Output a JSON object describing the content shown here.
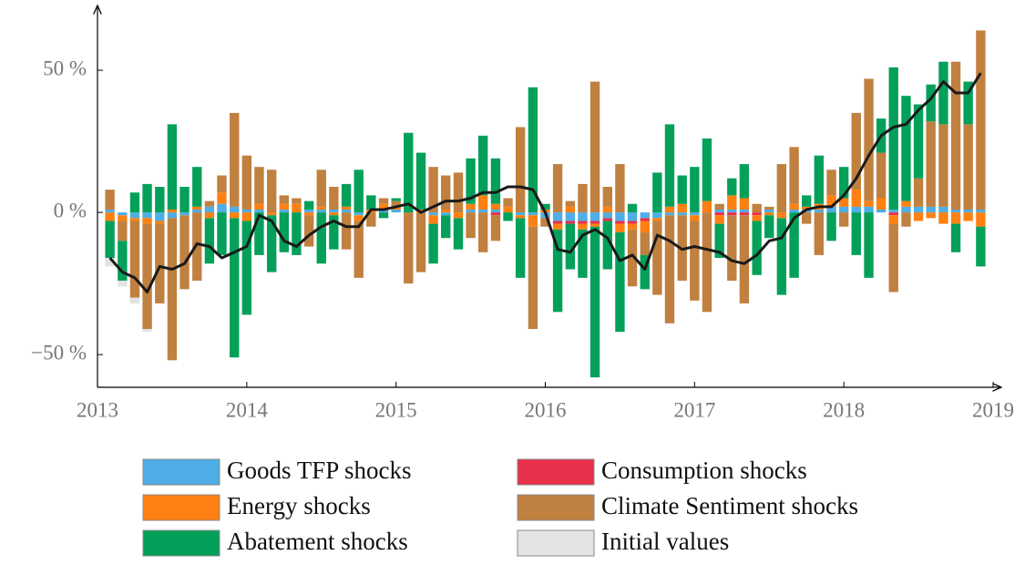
{
  "chart_data": {
    "type": "stacked-bar-line",
    "x": [
      2013.083,
      2013.167,
      2013.25,
      2013.333,
      2013.417,
      2013.5,
      2013.583,
      2013.667,
      2013.75,
      2013.833,
      2013.917,
      2014.0,
      2014.083,
      2014.167,
      2014.25,
      2014.333,
      2014.417,
      2014.5,
      2014.583,
      2014.667,
      2014.75,
      2014.833,
      2014.917,
      2015.0,
      2015.083,
      2015.167,
      2015.25,
      2015.333,
      2015.417,
      2015.5,
      2015.583,
      2015.667,
      2015.75,
      2015.833,
      2015.917,
      2016.0,
      2016.083,
      2016.167,
      2016.25,
      2016.333,
      2016.417,
      2016.5,
      2016.583,
      2016.667,
      2016.75,
      2016.833,
      2016.917,
      2017.0,
      2017.083,
      2017.167,
      2017.25,
      2017.333,
      2017.417,
      2017.5,
      2017.583,
      2017.667,
      2017.75,
      2017.833,
      2017.917,
      2018.0,
      2018.083,
      2018.167,
      2018.25,
      2018.333,
      2018.417,
      2018.5,
      2018.583,
      2018.667,
      2018.75,
      2018.833,
      2018.917
    ],
    "series": [
      {
        "name": "Goods TFP shocks",
        "color": "#4eaee5",
        "values": [
          1,
          -1,
          -2,
          -2,
          -3,
          -2,
          -1,
          1,
          2,
          3,
          2,
          1,
          1,
          0,
          1,
          0,
          1,
          1,
          1,
          1,
          -1,
          0,
          1,
          1,
          0,
          0,
          -1,
          -1,
          0,
          1,
          1,
          1,
          0,
          -1,
          -1,
          -2,
          -3,
          -3,
          -3,
          -3,
          -2,
          -3,
          -3,
          -2,
          -2,
          -1,
          -1,
          -1,
          0,
          1,
          1,
          1,
          0,
          1,
          0,
          1,
          1,
          1,
          2,
          2,
          2,
          2,
          1,
          1,
          2,
          2,
          2,
          2,
          1,
          1,
          1
        ]
      },
      {
        "name": "Consumption shocks",
        "color": "#e8304a",
        "values": [
          0,
          0,
          0,
          0,
          0,
          0,
          0,
          0,
          0,
          0,
          0,
          0,
          0,
          0,
          0,
          0,
          0,
          0,
          0,
          0,
          0,
          0,
          0,
          0,
          0,
          0,
          0,
          0,
          0,
          0,
          0,
          -1,
          0,
          0,
          0,
          0,
          -1,
          -1,
          -1,
          -1,
          -1,
          -1,
          -1,
          -1,
          0,
          0,
          0,
          0,
          0,
          -1,
          -1,
          -1,
          -1,
          0,
          0,
          0,
          0,
          0,
          0,
          0,
          0,
          0,
          0,
          -1,
          0,
          0,
          0,
          0,
          0,
          0,
          0
        ]
      },
      {
        "name": "Energy shocks",
        "color": "#fe8012",
        "values": [
          -3,
          -2,
          -1,
          -2,
          -1,
          1,
          0,
          1,
          -2,
          4,
          -2,
          -3,
          2,
          -1,
          2,
          3,
          -1,
          1,
          -1,
          1,
          -2,
          1,
          2,
          1,
          0,
          1,
          -3,
          1,
          -2,
          2,
          5,
          2,
          2,
          -1,
          -4,
          1,
          -2,
          2,
          -2,
          -1,
          2,
          -3,
          -2,
          -4,
          -1,
          2,
          3,
          -2,
          4,
          -3,
          5,
          4,
          -2,
          -1,
          -2,
          2,
          1,
          2,
          4,
          3,
          6,
          2,
          4,
          -3,
          2,
          -3,
          -2,
          -4,
          -4,
          -3,
          -5
        ]
      },
      {
        "name": "Climate Sentiment shocks",
        "color": "#c0803f",
        "values": [
          7,
          -7,
          -27,
          -37,
          -28,
          -50,
          -26,
          -24,
          2,
          6,
          33,
          19,
          13,
          15,
          3,
          2,
          -11,
          13,
          8,
          -13,
          -20,
          -5,
          2,
          2,
          -25,
          -21,
          16,
          12,
          14,
          -9,
          -14,
          -9,
          3,
          30,
          -36,
          -3,
          17,
          2,
          10,
          46,
          7,
          17,
          -20,
          -8,
          -26,
          -38,
          -23,
          -28,
          -35,
          2,
          -23,
          -31,
          3,
          1,
          17,
          20,
          -4,
          -15,
          9,
          -5,
          27,
          43,
          16,
          -24,
          -5,
          10,
          30,
          29,
          52,
          30,
          63
        ]
      },
      {
        "name": "Abatement shocks",
        "color": "#04a05a",
        "values": [
          -13,
          -14,
          7,
          10,
          9,
          30,
          9,
          14,
          -16,
          -15,
          -49,
          -33,
          -15,
          -20,
          -14,
          -15,
          3,
          -18,
          -12,
          8,
          15,
          5,
          -2,
          1,
          28,
          20,
          -14,
          -8,
          -11,
          16,
          21,
          16,
          -3,
          -21,
          44,
          2,
          -29,
          -16,
          -17,
          -53,
          -17,
          -35,
          3,
          -12,
          14,
          29,
          10,
          16,
          22,
          -12,
          6,
          12,
          -19,
          -8,
          -27,
          -23,
          4,
          17,
          -10,
          11,
          -15,
          -23,
          12,
          50,
          37,
          26,
          13,
          22,
          -10,
          15,
          -14
        ]
      },
      {
        "name": "Initial values",
        "color": "#e3e3e3",
        "values": [
          -3,
          -2,
          -2,
          -1,
          0,
          0,
          0,
          0,
          0,
          0,
          0,
          0,
          0,
          0,
          0,
          0,
          0,
          0,
          0,
          0,
          0,
          0,
          0,
          0,
          0,
          0,
          0,
          0,
          0,
          0,
          0,
          0,
          0,
          0,
          0,
          0,
          0,
          0,
          0,
          0,
          0,
          0,
          0,
          0,
          0,
          0,
          0,
          0,
          0,
          0,
          0,
          0,
          0,
          0,
          0,
          0,
          0,
          0,
          0,
          0,
          0,
          0,
          0,
          0,
          0,
          0,
          0,
          0,
          0,
          0,
          0
        ]
      }
    ],
    "total_line": {
      "color": "#1a1a1a",
      "values": [
        -16,
        -21,
        -23,
        -28,
        -19,
        -20,
        -18,
        -11,
        -12,
        -16,
        -14,
        -12,
        -1,
        -3,
        -10,
        -12,
        -8,
        -5,
        -3,
        -5,
        -5,
        1,
        1,
        2,
        3,
        0,
        2,
        4,
        4,
        5,
        7,
        7,
        9,
        9,
        8,
        0,
        -13,
        -14,
        -8,
        -6,
        -9,
        -17,
        -15,
        -20,
        -8,
        -10,
        -13,
        -12,
        -13,
        -14,
        -17,
        -18,
        -15,
        -10,
        -9,
        -2,
        1,
        2,
        2,
        6,
        12,
        20,
        27,
        30,
        31,
        36,
        40,
        46,
        42,
        42,
        49
      ]
    },
    "xlim": [
      2013,
      2019
    ],
    "xticks": [
      2013,
      2014,
      2015,
      2016,
      2017,
      2018,
      2019
    ],
    "ylim": [
      -61.5,
      71.5
    ],
    "yticks": [
      {
        "value": -50,
        "label": "−50 %"
      },
      {
        "value": 0,
        "label": "0 %"
      },
      {
        "value": 50,
        "label": "50 %"
      }
    ],
    "grid": false
  }
}
